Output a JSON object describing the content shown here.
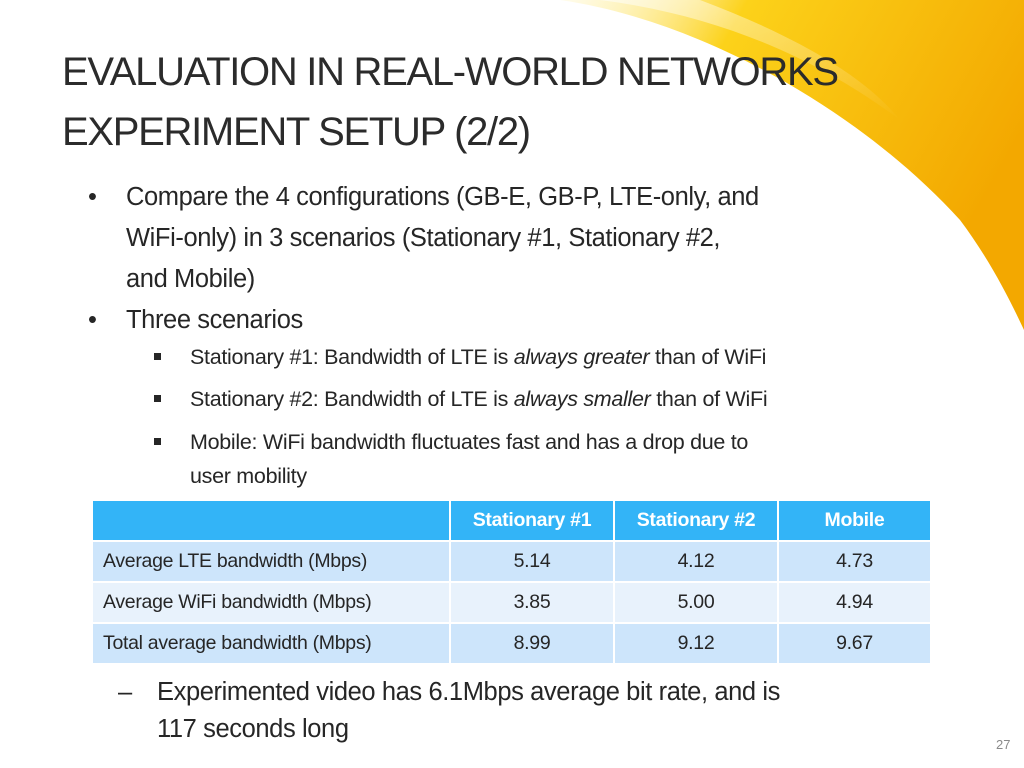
{
  "title": {
    "line1": "EVALUATION IN REAL-WORLD NETWORKS",
    "line2": "EXPERIMENT SETUP (2/2)"
  },
  "bullets": [
    {
      "lines": [
        "Compare the 4 configurations (GB-E, GB-P, LTE-only, and",
        "WiFi-only) in 3 scenarios (Stationary #1, Stationary #2,",
        "and Mobile)"
      ]
    },
    {
      "lines": [
        "Three scenarios"
      ]
    }
  ],
  "sub_bullets": [
    {
      "pre": "Stationary #1: Bandwidth of LTE is ",
      "em": "always greater",
      "post": " than of WiFi"
    },
    {
      "pre": "Stationary #2: Bandwidth of LTE is ",
      "em": "always smaller",
      "post": " than of WiFi"
    },
    {
      "line1": "Mobile: WiFi bandwidth fluctuates fast and has a drop due to",
      "line2": "user mobility"
    }
  ],
  "table": {
    "headers": [
      "",
      "Stationary #1",
      "Stationary #2",
      "Mobile"
    ],
    "rows": [
      [
        "Average LTE bandwidth (Mbps)",
        "5.14",
        "4.12",
        "4.73"
      ],
      [
        "Average WiFi bandwidth (Mbps)",
        "3.85",
        "5.00",
        "4.94"
      ],
      [
        "Total average bandwidth (Mbps)",
        "8.99",
        "9.12",
        "9.67"
      ]
    ],
    "header_color": "#33b4f7",
    "row_colors": [
      "#cde5fb",
      "#e8f2fc"
    ]
  },
  "note": {
    "marker": "–",
    "line1": "Experimented video has 6.1Mbps average bit rate, and is",
    "line2": "117 seconds long"
  },
  "page_number": "27",
  "accent_color": "#f7c600"
}
